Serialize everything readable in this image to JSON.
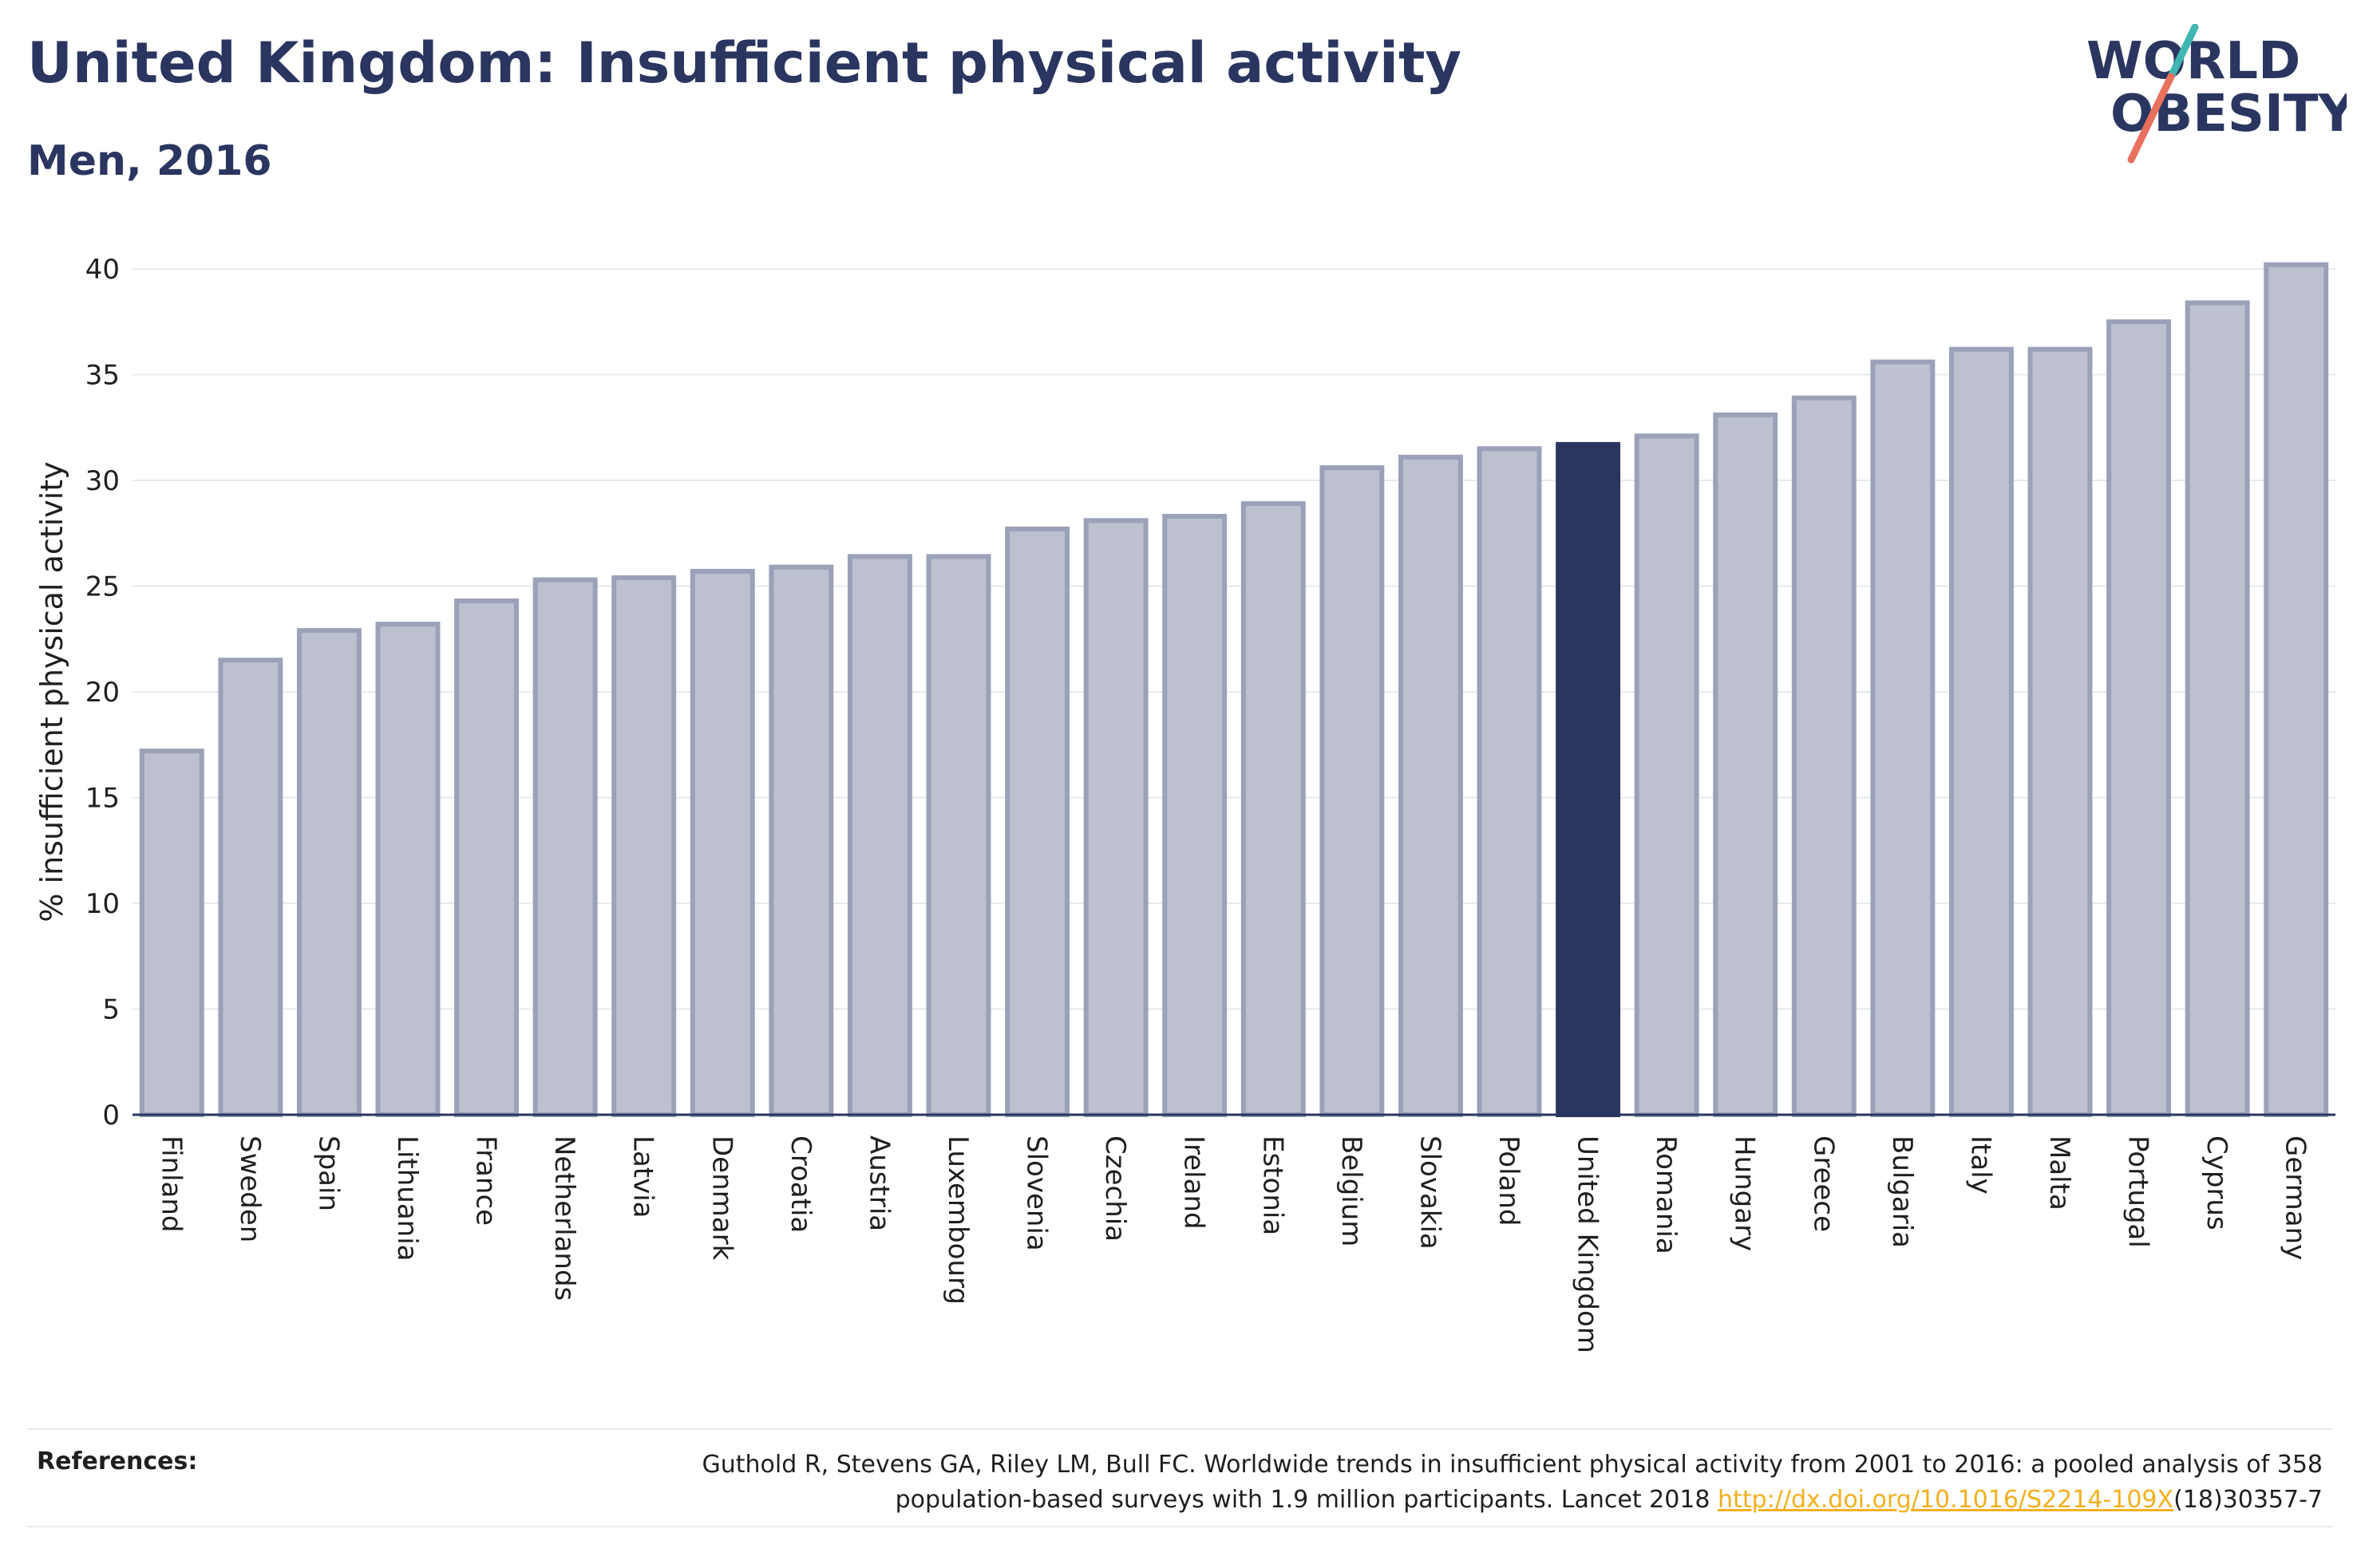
{
  "header": {
    "title": "United Kingdom: Insufficient physical activity",
    "subtitle": "Men, 2016",
    "logo_line1": "WORLD",
    "logo_line2": "OBESITY"
  },
  "colors": {
    "bar_fill": "#bcc0cf",
    "bar_stroke": "#9ba1b8",
    "highlight": "#2a3560",
    "accent_teal": "#3fb6b2",
    "accent_coral": "#e8705e",
    "link": "#f2b01e"
  },
  "chart_data": {
    "type": "bar",
    "title": "United Kingdom: Insufficient physical activity",
    "subtitle": "Men, 2016",
    "xlabel": "",
    "ylabel": "% insufficient physical activity",
    "ylim": [
      0,
      40
    ],
    "yticks": [
      0,
      5,
      10,
      15,
      20,
      25,
      30,
      35,
      40
    ],
    "grid": true,
    "highlight": "United Kingdom",
    "categories": [
      "Finland",
      "Sweden",
      "Spain",
      "Lithuania",
      "France",
      "Netherlands",
      "Latvia",
      "Denmark",
      "Croatia",
      "Austria",
      "Luxembourg",
      "Slovenia",
      "Czechia",
      "Ireland",
      "Estonia",
      "Belgium",
      "Slovakia",
      "Poland",
      "United Kingdom",
      "Romania",
      "Hungary",
      "Greece",
      "Bulgaria",
      "Italy",
      "Malta",
      "Portugal",
      "Cyprus",
      "Germany"
    ],
    "values": [
      17.2,
      21.5,
      22.9,
      23.2,
      24.3,
      25.3,
      25.4,
      25.7,
      25.9,
      26.4,
      26.4,
      27.7,
      28.1,
      28.3,
      28.9,
      30.6,
      31.1,
      31.5,
      31.7,
      32.1,
      33.1,
      33.9,
      35.6,
      36.2,
      36.2,
      37.5,
      38.4,
      40.2
    ]
  },
  "references": {
    "label": "References:",
    "text_line1": "Guthold R, Stevens GA, Riley LM, Bull FC. Worldwide trends in insufficient physical activity from 2001 to 2016: a pooled analysis of 358",
    "text_line2_pre": "population-based surveys with 1.9 million participants. Lancet 2018 ",
    "link_text": "http://dx.doi.org/10.1016/S2214-109X",
    "text_line2_post": "(18)30357-7"
  }
}
